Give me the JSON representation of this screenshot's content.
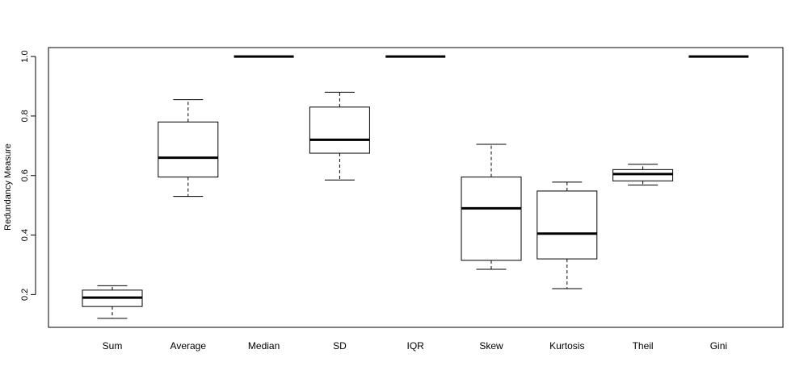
{
  "chart_data": {
    "type": "boxplot",
    "title": "",
    "xlabel": "",
    "ylabel": "Redundancy Measure",
    "ylim": [
      0.09,
      1.03
    ],
    "yticks": [
      0.2,
      0.4,
      0.6,
      0.8,
      1.0
    ],
    "ytick_labels": [
      "0.2",
      "0.4",
      "0.6",
      "0.8",
      "1.0"
    ],
    "grid": false,
    "categories": [
      "Sum",
      "Average",
      "Median",
      "SD",
      "IQR",
      "Skew",
      "Kurtosis",
      "Theil",
      "Gini"
    ],
    "boxes": [
      {
        "label": "Sum",
        "whisker_low": 0.12,
        "q1": 0.16,
        "median": 0.19,
        "q3": 0.215,
        "whisker_high": 0.23
      },
      {
        "label": "Average",
        "whisker_low": 0.53,
        "q1": 0.595,
        "median": 0.66,
        "q3": 0.78,
        "whisker_high": 0.855
      },
      {
        "label": "Median",
        "whisker_low": 1.0,
        "q1": 1.0,
        "median": 1.0,
        "q3": 1.0,
        "whisker_high": 1.0
      },
      {
        "label": "SD",
        "whisker_low": 0.585,
        "q1": 0.675,
        "median": 0.72,
        "q3": 0.83,
        "whisker_high": 0.88
      },
      {
        "label": "IQR",
        "whisker_low": 1.0,
        "q1": 1.0,
        "median": 1.0,
        "q3": 1.0,
        "whisker_high": 1.0
      },
      {
        "label": "Skew",
        "whisker_low": 0.285,
        "q1": 0.315,
        "median": 0.49,
        "q3": 0.595,
        "whisker_high": 0.705
      },
      {
        "label": "Kurtosis",
        "whisker_low": 0.22,
        "q1": 0.32,
        "median": 0.405,
        "q3": 0.548,
        "whisker_high": 0.578
      },
      {
        "label": "Theil",
        "whisker_low": 0.568,
        "q1": 0.582,
        "median": 0.605,
        "q3": 0.62,
        "whisker_high": 0.638
      },
      {
        "label": "Gini",
        "whisker_low": 1.0,
        "q1": 1.0,
        "median": 1.0,
        "q3": 1.0,
        "whisker_high": 1.0
      }
    ]
  }
}
